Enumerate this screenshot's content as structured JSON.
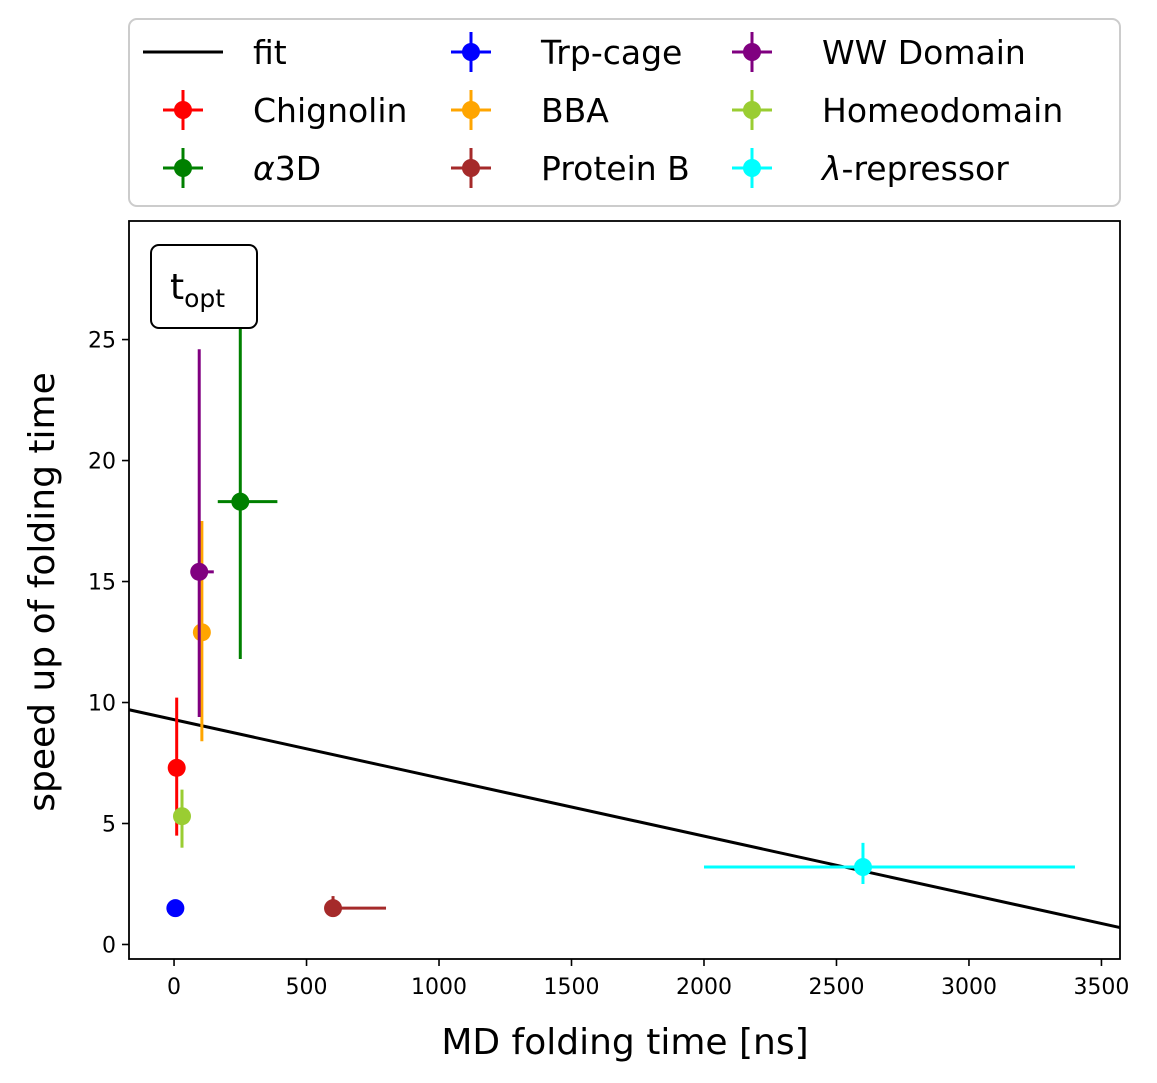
{
  "chart_data": {
    "type": "scatter",
    "title": "",
    "xlabel": "MD folding time [ns]",
    "ylabel": "speed up of folding time",
    "annotation": {
      "main": "t",
      "sub": "opt"
    },
    "xlim": [
      -170,
      3570
    ],
    "ylim": [
      -0.6,
      29.9
    ],
    "xticks": [
      0,
      500,
      1000,
      1500,
      2000,
      2500,
      3000,
      3500
    ],
    "yticks": [
      0,
      5,
      10,
      15,
      20,
      25
    ],
    "grid": false,
    "legend_position": "above plot, 3 columns",
    "fit": {
      "name": "fit",
      "color": "#000000",
      "x": [
        -170,
        3570
      ],
      "y": [
        9.7,
        0.7
      ]
    },
    "series": [
      {
        "name": "Chignolin",
        "label_parts": [
          {
            "t": "Chignolin"
          }
        ],
        "color": "#ff0000",
        "x": 10,
        "y": 7.3,
        "xerr": [
          0,
          0
        ],
        "yerr": [
          2.8,
          2.9
        ]
      },
      {
        "name": "α3D",
        "label_parts": [
          {
            "t": "α",
            "italic": true
          },
          {
            "t": "3D"
          }
        ],
        "color": "#008000",
        "x": 250,
        "y": 18.3,
        "xerr": [
          85,
          140
        ],
        "yerr": [
          6.5,
          7.3
        ]
      },
      {
        "name": "Trp-cage",
        "label_parts": [
          {
            "t": "Trp-cage"
          }
        ],
        "color": "#0000ff",
        "x": 5,
        "y": 1.5,
        "xerr": [
          0,
          0
        ],
        "yerr": [
          0.35,
          0.2
        ]
      },
      {
        "name": "BBA",
        "label_parts": [
          {
            "t": "BBA"
          }
        ],
        "color": "#ffa500",
        "x": 105,
        "y": 12.9,
        "xerr": [
          15,
          15
        ],
        "yerr": [
          4.5,
          4.6
        ]
      },
      {
        "name": "Protein B",
        "label_parts": [
          {
            "t": "Protein B"
          }
        ],
        "color": "#a52a2a",
        "x": 600,
        "y": 1.5,
        "xerr": [
          0,
          200
        ],
        "yerr": [
          0,
          0.5
        ]
      },
      {
        "name": "WW Domain",
        "label_parts": [
          {
            "t": "WW Domain"
          }
        ],
        "color": "#800080",
        "x": 95,
        "y": 15.4,
        "xerr": [
          0,
          55
        ],
        "yerr": [
          6.0,
          9.2
        ]
      },
      {
        "name": "Homeodomain",
        "label_parts": [
          {
            "t": "Homeodomain"
          }
        ],
        "color": "#9acd32",
        "x": 30,
        "y": 5.3,
        "xerr": [
          0,
          0
        ],
        "yerr": [
          1.3,
          1.1
        ]
      },
      {
        "name": "λ-repressor",
        "label_parts": [
          {
            "t": "λ",
            "italic": true
          },
          {
            "t": "-repressor"
          }
        ],
        "color": "#00ffff",
        "x": 2600,
        "y": 3.2,
        "xerr": [
          600,
          800
        ],
        "yerr": [
          0.7,
          1.0
        ]
      }
    ]
  }
}
